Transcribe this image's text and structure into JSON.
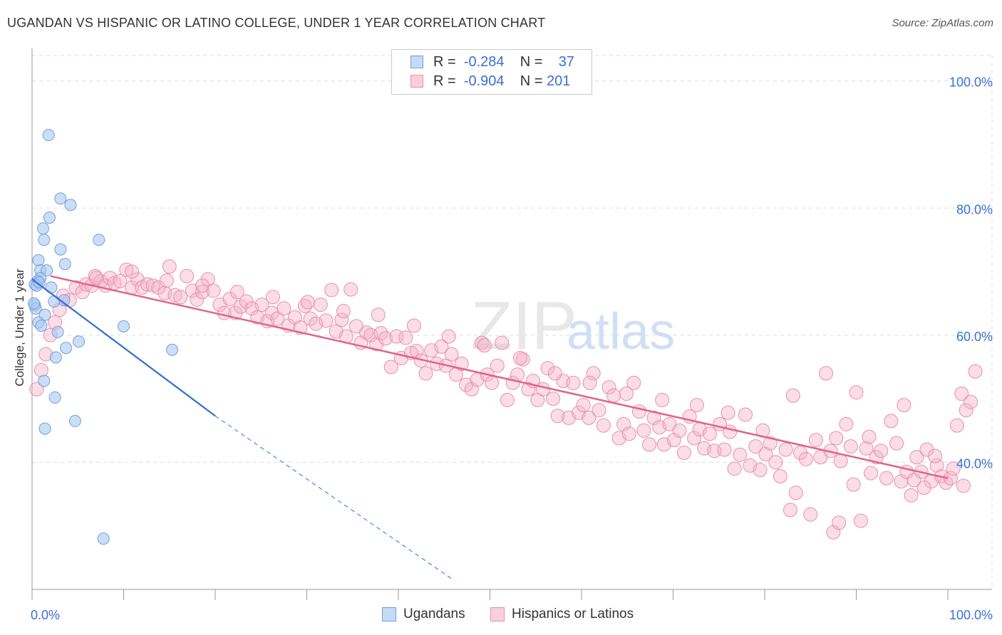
{
  "header": {
    "title": "UGANDAN VS HISPANIC OR LATINO COLLEGE, UNDER 1 YEAR CORRELATION CHART",
    "source": "Source: ZipAtlas.com"
  },
  "legend": {
    "rows": [
      {
        "r_label": "R =",
        "r_value": "-0.284",
        "n_label": "N =",
        "n_value": "37"
      },
      {
        "r_label": "R =",
        "r_value": "-0.904",
        "n_label": "N =",
        "n_value": "201"
      }
    ],
    "bottom": [
      "Ugandans",
      "Hispanics or Latinos"
    ]
  },
  "colors": {
    "ugandan_fill": "#aac8f0",
    "ugandan_stroke": "#6f9fdc",
    "ugandan_line": "#2f6fd0",
    "hispanic_fill": "#f5b3c8",
    "hispanic_stroke": "#e98fae",
    "hispanic_line": "#e0648f",
    "axis_text": "#3a6fd8",
    "grid": "#dddddd"
  },
  "chart_data": {
    "type": "scatter",
    "title": "UGANDAN VS HISPANIC OR LATINO COLLEGE, UNDER 1 YEAR CORRELATION CHART",
    "xlabel": "",
    "ylabel": "College, Under 1 year",
    "xlim": [
      0,
      100
    ],
    "ylim": [
      20,
      104
    ],
    "x_tick_labels": [
      "0.0%",
      "100.0%"
    ],
    "y_tick_labels": [
      "40.0%",
      "60.0%",
      "80.0%",
      "100.0%"
    ],
    "y_ticks": [
      40,
      60,
      80,
      100
    ],
    "grid": true,
    "legend_position": "top-center",
    "watermark": "ZIPatlas",
    "series": [
      {
        "name": "Ugandans",
        "R": -0.284,
        "N": 37,
        "trend": {
          "x": [
            0,
            20
          ],
          "y": [
            68.8,
            47.3
          ],
          "dashed_to": {
            "x": 46,
            "y": 21.5
          }
        },
        "points": [
          [
            1.8,
            91.5
          ],
          [
            3.1,
            81.5
          ],
          [
            4.2,
            80.5
          ],
          [
            1.9,
            78.5
          ],
          [
            1.2,
            76.8
          ],
          [
            7.3,
            75.0
          ],
          [
            1.3,
            75.0
          ],
          [
            3.1,
            73.5
          ],
          [
            0.7,
            71.8
          ],
          [
            3.6,
            71.2
          ],
          [
            0.9,
            70.2
          ],
          [
            1.6,
            70.2
          ],
          [
            0.9,
            69.0
          ],
          [
            0.6,
            68.5
          ],
          [
            0.3,
            68.0
          ],
          [
            0.5,
            67.8
          ],
          [
            2.1,
            67.5
          ],
          [
            3.5,
            65.5
          ],
          [
            2.4,
            65.3
          ],
          [
            0.3,
            64.7
          ],
          [
            0.4,
            64.2
          ],
          [
            1.4,
            63.2
          ],
          [
            0.7,
            62.0
          ],
          [
            1.0,
            61.5
          ],
          [
            10.0,
            61.4
          ],
          [
            2.8,
            60.5
          ],
          [
            5.1,
            59.0
          ],
          [
            3.7,
            58.0
          ],
          [
            15.3,
            57.7
          ],
          [
            2.6,
            56.5
          ],
          [
            1.3,
            52.8
          ],
          [
            2.5,
            50.2
          ],
          [
            4.7,
            46.5
          ],
          [
            1.4,
            45.3
          ],
          [
            7.8,
            28.0
          ],
          [
            0.2,
            65.0
          ],
          [
            0.8,
            68.3
          ]
        ]
      },
      {
        "name": "Hispanics or Latinos",
        "R": -0.904,
        "N": 201,
        "trend": {
          "x": [
            2,
            100
          ],
          "y": [
            69.3,
            37.5
          ]
        },
        "points": [
          [
            0.5,
            51.5
          ],
          [
            1.0,
            54.5
          ],
          [
            1.5,
            57.0
          ],
          [
            2.0,
            60.0
          ],
          [
            2.5,
            62.0
          ],
          [
            3.0,
            64.0
          ],
          [
            3.4,
            66.2
          ],
          [
            4.1,
            65.5
          ],
          [
            4.8,
            67.5
          ],
          [
            5.5,
            66.8
          ],
          [
            5.9,
            68.0
          ],
          [
            6.5,
            67.8
          ],
          [
            6.9,
            69.3
          ],
          [
            7.5,
            68.5
          ],
          [
            8.0,
            67.8
          ],
          [
            8.5,
            69.0
          ],
          [
            9.0,
            68.2
          ],
          [
            9.6,
            68.5
          ],
          [
            10.3,
            70.3
          ],
          [
            10.9,
            67.5
          ],
          [
            11.5,
            68.8
          ],
          [
            12.0,
            67.5
          ],
          [
            12.6,
            68.0
          ],
          [
            13.2,
            67.8
          ],
          [
            13.8,
            67.5
          ],
          [
            14.5,
            66.6
          ],
          [
            15.0,
            70.8
          ],
          [
            15.6,
            66.3
          ],
          [
            16.2,
            66.0
          ],
          [
            16.9,
            69.3
          ],
          [
            17.5,
            67.0
          ],
          [
            18.0,
            65.6
          ],
          [
            18.6,
            66.8
          ],
          [
            19.2,
            68.8
          ],
          [
            19.8,
            67.0
          ],
          [
            20.5,
            64.8
          ],
          [
            21.0,
            63.5
          ],
          [
            21.6,
            65.7
          ],
          [
            22.2,
            63.5
          ],
          [
            22.8,
            64.5
          ],
          [
            23.4,
            65.3
          ],
          [
            24.0,
            64.2
          ],
          [
            24.6,
            62.8
          ],
          [
            25.1,
            64.8
          ],
          [
            25.7,
            62.2
          ],
          [
            26.2,
            63.5
          ],
          [
            26.8,
            62.6
          ],
          [
            27.5,
            64.2
          ],
          [
            28.0,
            61.5
          ],
          [
            28.7,
            62.8
          ],
          [
            29.3,
            61.2
          ],
          [
            29.8,
            64.6
          ],
          [
            30.4,
            62.6
          ],
          [
            31.0,
            61.8
          ],
          [
            31.5,
            64.8
          ],
          [
            32.1,
            62.3
          ],
          [
            32.7,
            67.1
          ],
          [
            33.2,
            60.6
          ],
          [
            33.8,
            62.4
          ],
          [
            34.3,
            59.8
          ],
          [
            34.8,
            67.2
          ],
          [
            35.4,
            61.4
          ],
          [
            35.9,
            58.8
          ],
          [
            36.5,
            60.4
          ],
          [
            37.0,
            60.0
          ],
          [
            37.6,
            58.6
          ],
          [
            38.1,
            60.3
          ],
          [
            38.6,
            59.5
          ],
          [
            39.2,
            55.0
          ],
          [
            39.8,
            59.8
          ],
          [
            40.3,
            56.4
          ],
          [
            40.8,
            59.6
          ],
          [
            41.4,
            57.2
          ],
          [
            42.0,
            57.5
          ],
          [
            42.5,
            56.0
          ],
          [
            43.0,
            54.0
          ],
          [
            43.6,
            57.6
          ],
          [
            44.2,
            55.5
          ],
          [
            44.7,
            58.2
          ],
          [
            45.2,
            55.2
          ],
          [
            45.8,
            57.0
          ],
          [
            46.3,
            53.8
          ],
          [
            46.9,
            55.5
          ],
          [
            47.4,
            52.2
          ],
          [
            48.0,
            51.5
          ],
          [
            48.6,
            53.0
          ],
          [
            49.1,
            58.8
          ],
          [
            49.7,
            53.8
          ],
          [
            50.2,
            52.5
          ],
          [
            50.8,
            55.2
          ],
          [
            51.3,
            58.8
          ],
          [
            51.9,
            49.8
          ],
          [
            52.5,
            52.5
          ],
          [
            53.0,
            53.8
          ],
          [
            53.6,
            56.2
          ],
          [
            54.2,
            51.5
          ],
          [
            54.7,
            52.8
          ],
          [
            55.2,
            49.8
          ],
          [
            55.8,
            51.5
          ],
          [
            56.3,
            54.8
          ],
          [
            56.9,
            50.0
          ],
          [
            57.4,
            47.3
          ],
          [
            58.0,
            52.8
          ],
          [
            58.6,
            47.0
          ],
          [
            59.1,
            52.5
          ],
          [
            59.7,
            47.8
          ],
          [
            60.2,
            49.0
          ],
          [
            60.8,
            47.0
          ],
          [
            61.3,
            54.0
          ],
          [
            61.9,
            48.2
          ],
          [
            62.4,
            45.8
          ],
          [
            63.0,
            51.8
          ],
          [
            63.5,
            50.5
          ],
          [
            64.1,
            43.8
          ],
          [
            64.6,
            46.0
          ],
          [
            65.2,
            44.5
          ],
          [
            65.7,
            52.5
          ],
          [
            66.3,
            48.0
          ],
          [
            66.8,
            45.0
          ],
          [
            67.4,
            42.8
          ],
          [
            67.9,
            47.0
          ],
          [
            68.5,
            45.5
          ],
          [
            69.0,
            42.8
          ],
          [
            69.6,
            46.0
          ],
          [
            70.1,
            43.5
          ],
          [
            70.7,
            45.0
          ],
          [
            71.2,
            41.5
          ],
          [
            71.8,
            47.2
          ],
          [
            72.3,
            43.8
          ],
          [
            72.9,
            45.2
          ],
          [
            73.4,
            42.2
          ],
          [
            74.0,
            44.5
          ],
          [
            74.5,
            41.8
          ],
          [
            75.1,
            46.0
          ],
          [
            75.6,
            42.0
          ],
          [
            76.2,
            44.8
          ],
          [
            76.7,
            39.0
          ],
          [
            77.3,
            41.2
          ],
          [
            77.9,
            47.5
          ],
          [
            78.4,
            39.5
          ],
          [
            79.0,
            42.5
          ],
          [
            79.5,
            38.8
          ],
          [
            80.1,
            41.3
          ],
          [
            80.6,
            43.0
          ],
          [
            81.2,
            40.0
          ],
          [
            81.7,
            37.8
          ],
          [
            82.3,
            42.0
          ],
          [
            82.8,
            32.5
          ],
          [
            83.4,
            35.2
          ],
          [
            83.9,
            41.5
          ],
          [
            84.5,
            40.5
          ],
          [
            85.0,
            31.8
          ],
          [
            85.6,
            43.5
          ],
          [
            86.1,
            40.8
          ],
          [
            86.7,
            54.0
          ],
          [
            87.2,
            41.8
          ],
          [
            87.8,
            43.8
          ],
          [
            88.3,
            40.2
          ],
          [
            88.9,
            46.0
          ],
          [
            89.4,
            42.5
          ],
          [
            90.0,
            51.0
          ],
          [
            90.5,
            30.8
          ],
          [
            91.1,
            42.2
          ],
          [
            91.6,
            38.3
          ],
          [
            92.2,
            40.8
          ],
          [
            92.7,
            41.8
          ],
          [
            93.3,
            37.5
          ],
          [
            93.8,
            46.5
          ],
          [
            94.4,
            43.0
          ],
          [
            94.9,
            37.0
          ],
          [
            95.5,
            38.5
          ],
          [
            96.0,
            34.8
          ],
          [
            96.6,
            40.8
          ],
          [
            97.1,
            38.5
          ],
          [
            97.7,
            42.0
          ],
          [
            98.2,
            37.0
          ],
          [
            98.8,
            39.5
          ],
          [
            99.3,
            37.8
          ],
          [
            99.8,
            36.8
          ],
          [
            100.3,
            37.5
          ],
          [
            101.0,
            45.8
          ],
          [
            101.5,
            50.8
          ],
          [
            102.0,
            48.2
          ],
          [
            102.5,
            49.5
          ],
          [
            103.0,
            54.3
          ],
          [
            87.5,
            29.0
          ],
          [
            88.1,
            30.5
          ],
          [
            89.7,
            36.5
          ],
          [
            91.4,
            44.0
          ],
          [
            95.2,
            49.0
          ],
          [
            96.3,
            37.2
          ],
          [
            97.4,
            36.0
          ],
          [
            98.6,
            41.0
          ],
          [
            100.6,
            39.0
          ],
          [
            101.7,
            36.3
          ],
          [
            83.1,
            50.5
          ],
          [
            79.8,
            45.0
          ],
          [
            76.0,
            47.8
          ],
          [
            72.6,
            49.0
          ],
          [
            68.8,
            49.8
          ],
          [
            64.9,
            50.8
          ],
          [
            60.9,
            52.5
          ],
          [
            57.1,
            54.0
          ],
          [
            53.3,
            56.4
          ],
          [
            49.4,
            58.4
          ],
          [
            45.5,
            59.8
          ],
          [
            41.7,
            61.5
          ],
          [
            37.8,
            63.2
          ],
          [
            34.0,
            63.8
          ],
          [
            30.1,
            65.2
          ],
          [
            26.3,
            66.0
          ],
          [
            22.4,
            66.8
          ],
          [
            18.6,
            67.8
          ],
          [
            14.7,
            68.6
          ],
          [
            10.9,
            70.0
          ],
          [
            7.0,
            69.0
          ]
        ]
      }
    ]
  }
}
